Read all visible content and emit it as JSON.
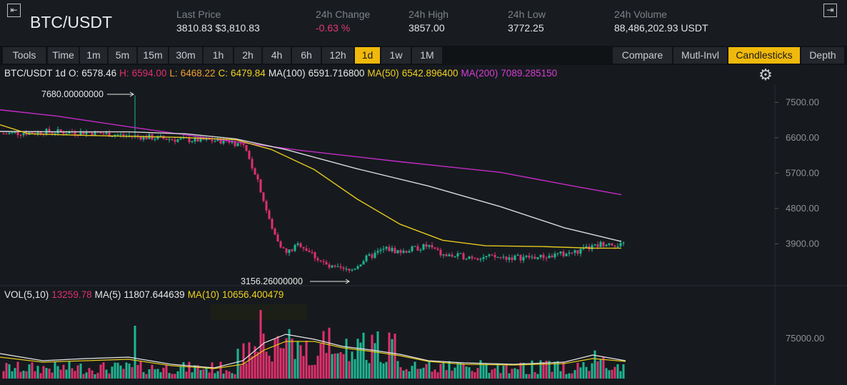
{
  "header": {
    "left_collapse_icon": "collapse-left-icon",
    "right_collapse_icon": "collapse-right-icon",
    "pair": "BTC/USDT",
    "stats": [
      {
        "label": "Last Price",
        "value": "3810.83 $3,810.83"
      },
      {
        "label": "24h Change",
        "value": "-0.63 %"
      },
      {
        "label": "24h High",
        "value": "3857.00"
      },
      {
        "label": "24h Low",
        "value": "3772.25"
      },
      {
        "label": "24h Volume",
        "value": "88,486,202.93 USDT"
      }
    ]
  },
  "toolbar": {
    "left": [
      "Tools",
      "Time",
      "1m",
      "5m",
      "15m",
      "30m",
      "1h",
      "2h",
      "4h",
      "6h",
      "12h",
      "1d",
      "1w",
      "1M"
    ],
    "active": "1d",
    "right": [
      "Compare",
      "Mutl-Invl",
      "Candlesticks",
      "Depth"
    ],
    "right_active": "Candlesticks"
  },
  "legend": {
    "symbol": "BTC/USDT 1d",
    "open_label": "O:",
    "open": "6578.46",
    "high_label": "H:",
    "high": "6594.00",
    "low_label": "L:",
    "low": "6468.22",
    "close_label": "C:",
    "close": "6479.84",
    "ma100_label": "MA(100)",
    "ma100": "6591.716800",
    "ma50_label": "MA(50)",
    "ma50": "6542.896400",
    "ma200_label": "MA(200)",
    "ma200": "7089.285150",
    "settings_icon": "gear-icon"
  },
  "vol_legend": {
    "label": "VOL(5,10)",
    "value": "13259.78",
    "ma5_label": "MA(5)",
    "ma5": "11807.644639",
    "ma10_label": "MA(10)",
    "ma10": "10656.400479"
  },
  "colors": {
    "up": "#1fb594",
    "down": "#e0306c",
    "ma50": "#e5c91e",
    "ma100": "#d9d9d9",
    "ma200": "#c52ac8",
    "accent": "#f0b90b"
  },
  "chart_data": {
    "type": "candlestick",
    "price_axis_ticks": [
      "7500.00",
      "6600.00",
      "5700.00",
      "4800.00",
      "3900.00"
    ],
    "volume_axis_ticks": [
      "75000.00"
    ],
    "annotations": {
      "max": "7680.00000000",
      "min": "3156.26000000"
    },
    "ylim": [
      2870,
      7960
    ],
    "ma200": [
      [
        0,
        7310
      ],
      [
        80,
        7150
      ],
      [
        180,
        6880
      ],
      [
        300,
        6570
      ],
      [
        420,
        6280
      ],
      [
        560,
        5990
      ],
      [
        700,
        5720
      ],
      [
        800,
        5380
      ],
      [
        870,
        5150
      ]
    ],
    "ma100": [
      [
        0,
        6760
      ],
      [
        80,
        6750
      ],
      [
        180,
        6750
      ],
      [
        260,
        6700
      ],
      [
        330,
        6570
      ],
      [
        400,
        6300
      ],
      [
        500,
        5810
      ],
      [
        600,
        5370
      ],
      [
        700,
        4850
      ],
      [
        790,
        4310
      ],
      [
        870,
        3960
      ]
    ],
    "ma50": [
      [
        0,
        6930
      ],
      [
        40,
        6700
      ],
      [
        120,
        6660
      ],
      [
        250,
        6610
      ],
      [
        330,
        6550
      ],
      [
        380,
        6300
      ],
      [
        440,
        5790
      ],
      [
        500,
        5040
      ],
      [
        560,
        4400
      ],
      [
        620,
        3990
      ],
      [
        680,
        3850
      ],
      [
        760,
        3830
      ],
      [
        830,
        3790
      ],
      [
        870,
        3790
      ]
    ]
  }
}
